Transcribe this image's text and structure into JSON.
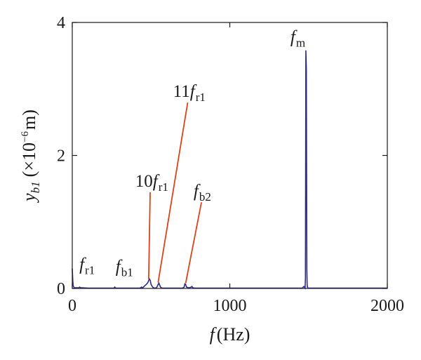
{
  "chart_data": {
    "type": "line",
    "xlabel": {
      "var": "f",
      "unit": "(Hz)"
    },
    "ylabel": {
      "var": "y",
      "sub": "b1",
      "unit_open": "(×10",
      "exp": "−6",
      "unit_close": "m)"
    },
    "xlim": [
      0,
      2000
    ],
    "ylim": [
      0,
      4
    ],
    "xticks": [
      0,
      1000,
      2000
    ],
    "yticks": [
      0,
      2,
      4
    ],
    "grid": false,
    "line_color": "#2e2a8c",
    "annotation_color": "#d9441c",
    "series": [
      {
        "x": [
          0,
          3,
          6,
          12,
          25,
          40,
          47,
          52,
          60,
          100,
          200,
          265,
          270,
          275,
          300,
          380,
          430,
          440,
          445,
          460,
          470,
          480,
          485,
          490,
          495,
          500,
          510,
          520,
          535,
          545,
          550,
          555,
          560,
          570,
          600,
          650,
          700,
          710,
          715,
          720,
          725,
          740,
          755,
          760,
          765,
          780,
          800,
          900,
          1000,
          1200,
          1400,
          1460,
          1470,
          1478,
          1480,
          1483,
          1486,
          1489,
          1491,
          1493,
          1495,
          1500,
          1550,
          1700,
          1900,
          2000
        ],
        "y": [
          0.3,
          0.12,
          0.04,
          0.01,
          0.01,
          0.01,
          0.02,
          0.01,
          0.01,
          0.005,
          0.005,
          0.005,
          0.02,
          0.005,
          0.005,
          0.005,
          0.005,
          0.02,
          0.005,
          0.04,
          0.06,
          0.09,
          0.12,
          0.14,
          0.12,
          0.06,
          0.02,
          0.005,
          0.01,
          0.06,
          0.08,
          0.05,
          0.02,
          0.005,
          0.005,
          0.005,
          0.005,
          0.02,
          0.07,
          0.06,
          0.02,
          0.01,
          0.02,
          0.03,
          0.01,
          0.005,
          0.005,
          0.005,
          0.005,
          0.005,
          0.005,
          0.005,
          0.03,
          0.005,
          0.15,
          3.58,
          3.3,
          0.3,
          0.06,
          0.02,
          0.005,
          0.005,
          0.005,
          0.005,
          0.005,
          0.005
        ]
      }
    ],
    "annotations": [
      {
        "id": "fr1",
        "main": "f",
        "sub": "r1",
        "prefix": "",
        "at_x": 45,
        "at_y": 0.28
      },
      {
        "id": "fb1",
        "main": "f",
        "sub": "b1",
        "prefix": "",
        "at_x": 275,
        "at_y": 0.25
      },
      {
        "id": "10fr1",
        "main": "f",
        "sub": "r1",
        "prefix": "10",
        "at_x": 400,
        "at_y": 1.53,
        "leader_to": [
          485,
          0.14
        ]
      },
      {
        "id": "11fr1",
        "main": "f",
        "sub": "r1",
        "prefix": "11",
        "at_x": 640,
        "at_y": 2.88,
        "leader_to": [
          545,
          0.09
        ]
      },
      {
        "id": "fb2",
        "main": "f",
        "sub": "b2",
        "prefix": "",
        "at_x": 770,
        "at_y": 1.38,
        "leader_to": [
          720,
          0.08
        ]
      },
      {
        "id": "fm",
        "main": "f",
        "sub": "m",
        "prefix": "",
        "at_x": 1385,
        "at_y": 3.7
      }
    ]
  }
}
